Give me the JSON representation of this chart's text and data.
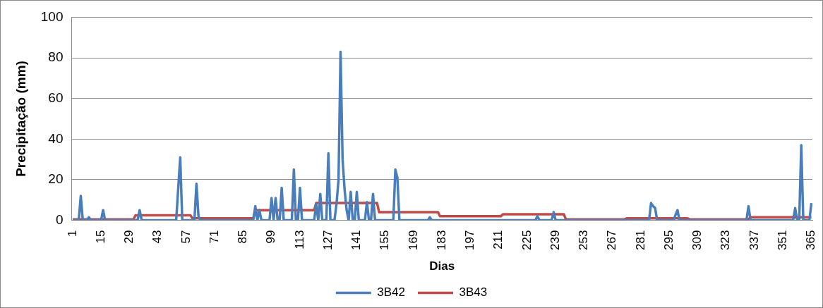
{
  "chart_data": {
    "type": "line",
    "xlabel": "Dias",
    "ylabel": "Precipitação (mm)",
    "xlim": [
      0.5,
      365.5
    ],
    "xticks": [
      1,
      15,
      29,
      43,
      57,
      71,
      85,
      99,
      113,
      127,
      141,
      155,
      169,
      183,
      197,
      211,
      225,
      239,
      253,
      267,
      281,
      295,
      309,
      323,
      337,
      351,
      365
    ],
    "ylim": [
      0,
      100
    ],
    "yticks": [
      0,
      20,
      40,
      60,
      80,
      100
    ],
    "grid": "y",
    "legend": "bottom",
    "marker": "none",
    "line_style": "solid",
    "series": [
      {
        "name": "3B42",
        "color": "#4a7ebb",
        "x": [
          1,
          4,
          5,
          6,
          8,
          9,
          10,
          15,
          16,
          17,
          33,
          34,
          35,
          52,
          54,
          55,
          61,
          62,
          63,
          64,
          90,
          91,
          92,
          93,
          94,
          98,
          99,
          100,
          101,
          102,
          103,
          104,
          105,
          109,
          110,
          111,
          112,
          113,
          114,
          120,
          121,
          122,
          123,
          124,
          126,
          127,
          128,
          130,
          131,
          132,
          133,
          134,
          135,
          136,
          137,
          138,
          139,
          140,
          141,
          142,
          145,
          146,
          147,
          148,
          149,
          150,
          159,
          160,
          161,
          162,
          176,
          177,
          178,
          229,
          230,
          231,
          237,
          238,
          239,
          285,
          286,
          287,
          288,
          289,
          297,
          299,
          300,
          333,
          334,
          335,
          356,
          357,
          358,
          359,
          360,
          361,
          364,
          365
        ],
        "values": [
          0,
          0,
          12,
          0,
          0,
          1.5,
          0,
          0,
          5,
          0,
          0,
          5,
          0,
          0,
          31,
          0,
          0,
          18,
          2,
          0,
          0,
          7,
          0,
          5,
          0,
          0,
          11,
          0,
          11,
          0,
          0,
          16,
          0,
          0,
          25,
          0,
          0,
          16,
          0,
          0,
          8,
          0,
          13,
          0,
          0,
          33,
          0,
          0,
          8,
          20,
          83,
          30,
          15,
          5,
          0,
          14,
          0,
          0,
          14,
          0,
          0,
          9,
          0,
          0,
          13,
          0,
          0,
          25,
          21,
          0,
          0,
          1.5,
          0,
          0,
          2,
          0,
          0,
          4,
          0,
          0,
          8.5,
          7,
          6,
          0,
          0,
          5,
          0,
          0,
          7,
          0,
          0,
          6,
          0,
          0,
          37,
          0,
          0,
          8.5
        ]
      },
      {
        "name": "3B43",
        "color": "#be4b48",
        "x": [
          1,
          31,
          32,
          59,
          60,
          90,
          91,
          120,
          121,
          151,
          152,
          181,
          182,
          212,
          213,
          243,
          244,
          273,
          274,
          304,
          305,
          334,
          335,
          365
        ],
        "values": [
          0.5,
          0.5,
          2.5,
          2.5,
          1,
          1,
          5,
          5,
          8.5,
          8.5,
          4,
          4,
          2,
          2,
          3,
          3,
          0.5,
          0.5,
          1,
          1,
          0.5,
          0.5,
          1.5,
          1.5
        ]
      }
    ]
  }
}
